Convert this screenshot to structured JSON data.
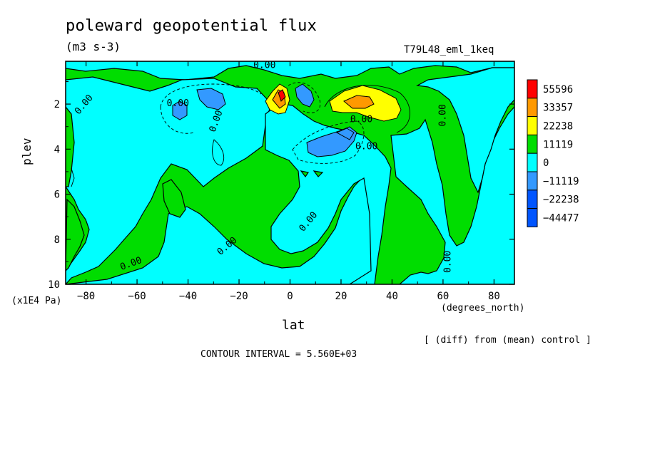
{
  "title": "poleward geopotential flux",
  "units": "(m3 s-3)",
  "experiment": "T79L48_eml_1keq",
  "footer": {
    "diff_note": "[ (diff) from (mean) control ]",
    "contour_interval": "CONTOUR INTERVAL = 5.560E+03"
  },
  "chart_data": {
    "type": "heatmap",
    "xlabel": "lat",
    "x_unit": "(degrees_north)",
    "ylabel": "plev",
    "y_unit": "(x1E4 Pa)",
    "xlim": [
      -88,
      88
    ],
    "ylim": [
      10,
      0.1
    ],
    "x_ticks": [
      -80,
      -60,
      -40,
      -20,
      0,
      20,
      40,
      60,
      80
    ],
    "y_ticks": [
      2,
      4,
      6,
      8,
      10
    ],
    "legend_position": "right",
    "levels": [
      {
        "label": "55596",
        "color": "#ff0000"
      },
      {
        "label": "33357",
        "color": "#ff9900"
      },
      {
        "label": "22238",
        "color": "#ffff00"
      },
      {
        "label": "11119",
        "color": "#00dd00"
      },
      {
        "label": "0",
        "color": "#00ffff"
      },
      {
        "label": "-11119",
        "color": "#3399ff"
      },
      {
        "label": "-22238",
        "color": "#0055ff"
      },
      {
        "label": "-44477",
        "color": "#0055ff"
      }
    ],
    "contour_labels": [
      "0.00",
      "0.00",
      "0.00",
      "0.00",
      "0.00",
      "0.00",
      "0.00",
      "0.00",
      "0.00",
      "0.00",
      "0.00"
    ]
  }
}
